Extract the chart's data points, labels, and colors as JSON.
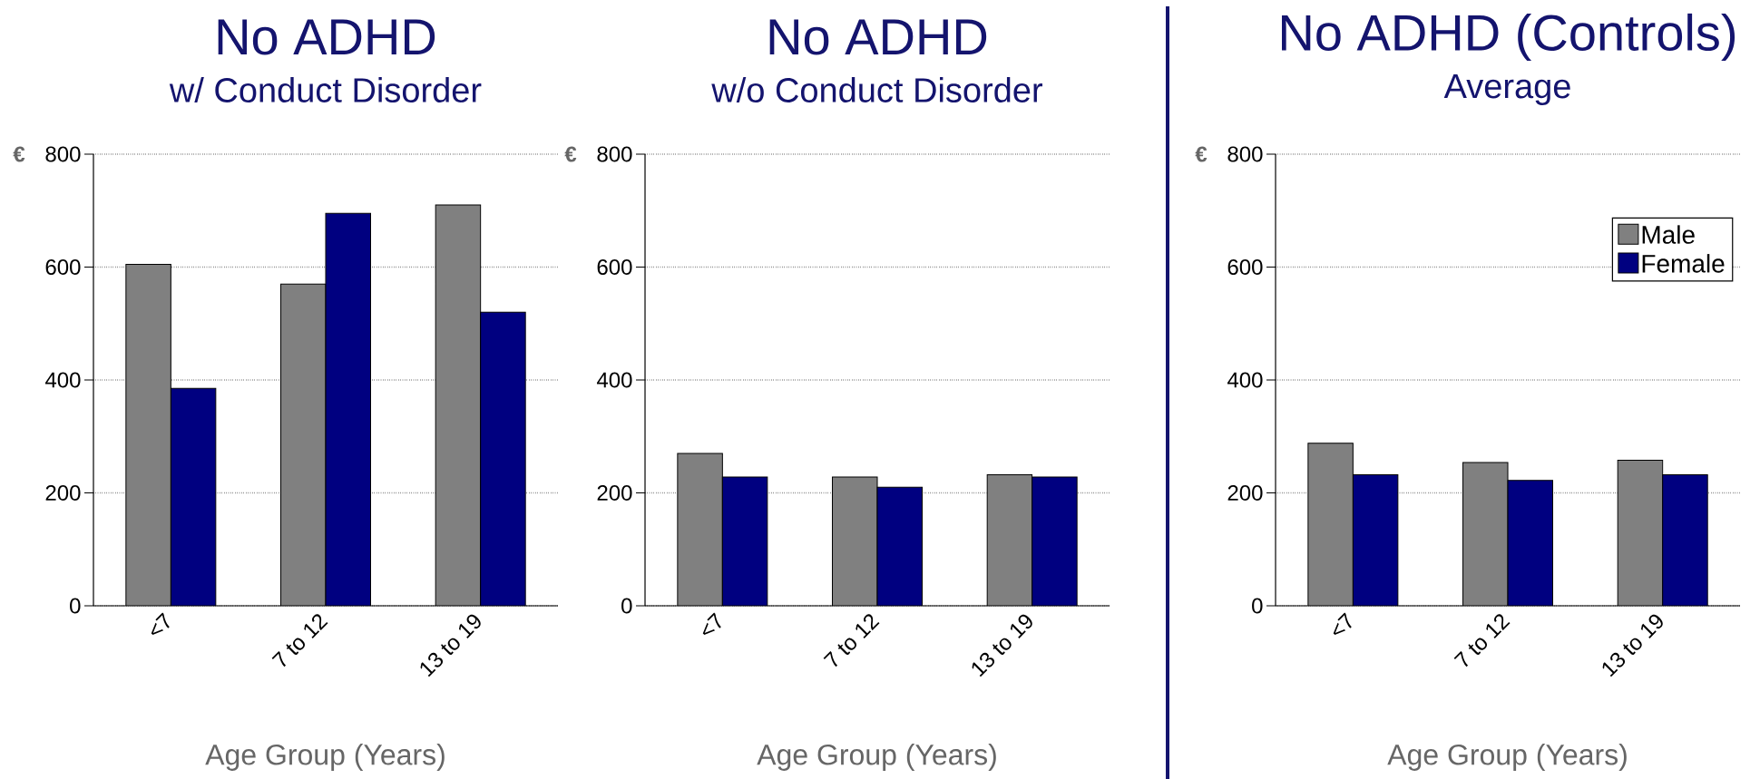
{
  "chart_data": [
    {
      "type": "bar",
      "title": "No ADHD",
      "subtitle": "w/ Conduct Disorder",
      "xlabel": "Age Group (Years)",
      "ylabel": "€",
      "categories": [
        "<7",
        "7 to 12",
        "13 to 19"
      ],
      "series": [
        {
          "color": "#808080",
          "values": [
            605,
            570,
            710
          ]
        },
        {
          "color": "#000080",
          "values": [
            385,
            695,
            520
          ]
        }
      ],
      "ylim": [
        0,
        800
      ],
      "yticks": [
        0,
        200,
        400,
        600,
        800
      ],
      "grid": "y"
    },
    {
      "type": "bar",
      "title": "No ADHD",
      "subtitle": "w/o Conduct Disorder",
      "xlabel": "Age Group (Years)",
      "ylabel": "€",
      "categories": [
        "<7",
        "7 to 12",
        "13 to 19"
      ],
      "series": [
        {
          "color": "#808080",
          "values": [
            270,
            228,
            232
          ]
        },
        {
          "color": "#000080",
          "values": [
            228,
            210,
            228
          ]
        }
      ],
      "ylim": [
        0,
        800
      ],
      "yticks": [
        0,
        200,
        400,
        600,
        800
      ],
      "grid": "y"
    },
    {
      "type": "bar",
      "title": "No ADHD (Controls)",
      "subtitle": "Average",
      "xlabel": "Age Group (Years)",
      "ylabel": "€",
      "categories": [
        "<7",
        "7 to 12",
        "13 to 19"
      ],
      "series": [
        {
          "name": "Male",
          "color": "#808080",
          "values": [
            288,
            254,
            258
          ]
        },
        {
          "name": "Female",
          "color": "#000080",
          "values": [
            232,
            222,
            232
          ]
        }
      ],
      "ylim": [
        0,
        800
      ],
      "yticks": [
        0,
        200,
        400,
        600,
        800
      ],
      "grid": "y",
      "legend": "top right"
    }
  ]
}
